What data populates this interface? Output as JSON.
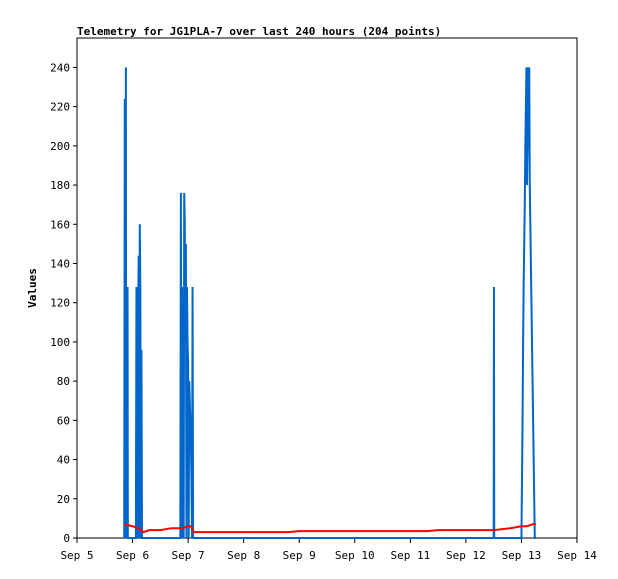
{
  "chart_data": {
    "type": "line",
    "title": "Telemetry for JG1PLA-7 over last 240 hours (204 points)",
    "xlabel": "",
    "ylabel": "Values",
    "x_ticks": [
      "Sep 5",
      "Sep 6",
      "Sep 7",
      "Sep 8",
      "Sep 9",
      "Sep 10",
      "Sep 11",
      "Sep 12",
      "Sep 13",
      "Sep 14"
    ],
    "y_ticks": [
      0,
      20,
      40,
      60,
      80,
      100,
      120,
      140,
      160,
      180,
      200,
      220,
      240
    ],
    "xlim": [
      5,
      14
    ],
    "ylim": [
      0,
      255
    ],
    "grid": false,
    "legend": "none",
    "series": [
      {
        "color": "#0066cc",
        "x": [
          5.85,
          5.86,
          5.865,
          5.87,
          5.875,
          5.88,
          5.885,
          5.89,
          5.895,
          5.9,
          5.905,
          5.91,
          5.915,
          5.92,
          6.06,
          6.07,
          6.08,
          6.09,
          6.1,
          6.11,
          6.12,
          6.13,
          6.14,
          6.15,
          6.16,
          6.17,
          6.18,
          6.86,
          6.87,
          6.88,
          6.89,
          6.9,
          6.91,
          6.92,
          6.93,
          6.94,
          6.95,
          6.96,
          6.97,
          6.98,
          6.99,
          7.0,
          7.01,
          7.02,
          7.03,
          7.04,
          7.05,
          7.06,
          7.07,
          7.08,
          7.09,
          7.1,
          7.11,
          7.12,
          7.13,
          7.14,
          7.15,
          7.16,
          7.17,
          12.5,
          12.505,
          12.51,
          12.515,
          13.0,
          13.01,
          13.02,
          13.03,
          13.04,
          13.05,
          13.06,
          13.07,
          13.08,
          13.09,
          13.1,
          13.11,
          13.12,
          13.13,
          13.14,
          13.15,
          13.16,
          13.17,
          13.18,
          13.19,
          13.2,
          13.21,
          13.22,
          13.23,
          13.24,
          13.25,
          13.26
        ],
        "y": [
          0,
          224,
          0,
          128,
          0,
          240,
          0,
          112,
          0,
          96,
          0,
          128,
          0,
          0,
          0,
          128,
          80,
          0,
          112,
          144,
          0,
          160,
          128,
          0,
          96,
          0,
          0,
          0,
          176,
          0,
          128,
          0,
          100,
          0,
          176,
          160,
          100,
          150,
          0,
          128,
          100,
          90,
          0,
          80,
          70,
          60,
          50,
          30,
          0,
          128,
          0,
          0,
          0,
          0,
          0,
          0,
          0,
          0,
          0,
          0,
          128,
          0,
          0,
          0,
          30,
          60,
          100,
          130,
          150,
          170,
          200,
          220,
          240,
          180,
          200,
          240,
          210,
          240,
          180,
          160,
          140,
          120,
          100,
          80,
          60,
          40,
          20,
          0,
          0,
          0
        ]
      },
      {
        "color": "#ff0000",
        "x": [
          5.85,
          6.0,
          6.1,
          6.2,
          6.3,
          6.5,
          6.7,
          6.9,
          7.0,
          7.05,
          7.1,
          7.3,
          7.5,
          7.8,
          8.0,
          8.3,
          8.5,
          8.8,
          9.0,
          9.3,
          9.5,
          10.0,
          10.5,
          10.8,
          11.0,
          11.3,
          11.5,
          12.0,
          12.5,
          12.8,
          13.0,
          13.1,
          13.2,
          13.26
        ],
        "y": [
          7,
          6,
          5,
          3,
          4,
          4,
          5,
          5,
          6,
          6,
          3,
          3,
          3,
          3,
          3,
          3,
          3,
          3,
          3.5,
          3.5,
          3.5,
          3.5,
          3.5,
          3.5,
          3.5,
          3.5,
          4,
          4,
          4,
          5,
          6,
          6,
          7,
          7
        ]
      }
    ]
  }
}
